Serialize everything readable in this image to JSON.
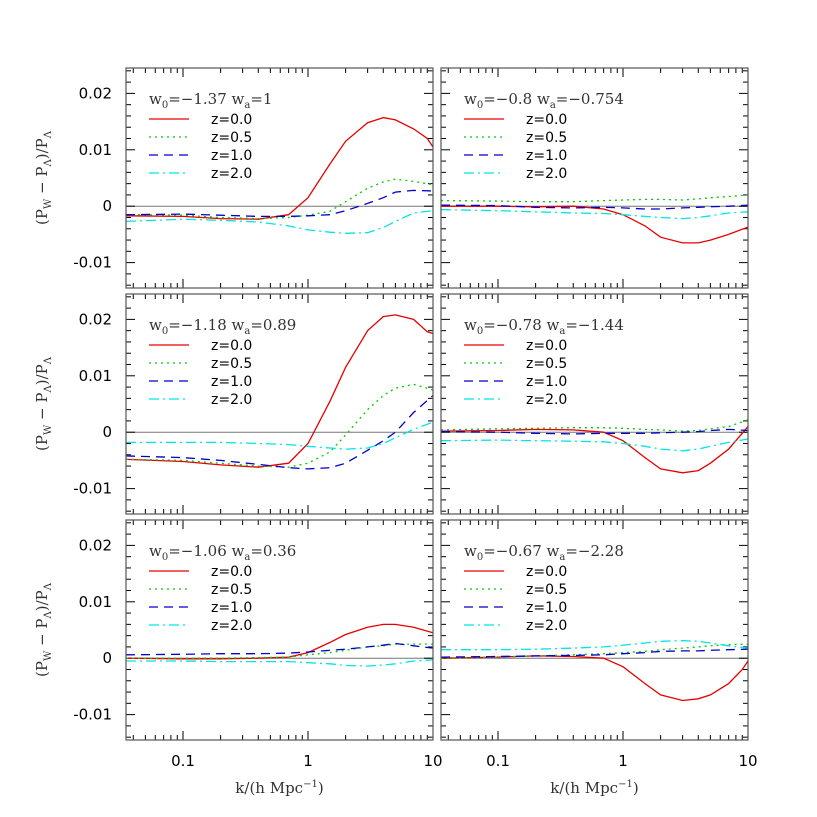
{
  "chart_data": {
    "type": "line",
    "xscale": "log",
    "xlim": [
      0.035,
      10
    ],
    "ylim": [
      -0.0145,
      0.0245
    ],
    "x_ticks": [
      "0.1",
      "1",
      "10"
    ],
    "y_ticks": [
      "0.02",
      "0.01",
      "0",
      "-0.01"
    ],
    "xlabel": "k/(h Mpc⁻¹)",
    "ylabel": "(Pₔ − PΛ)/PΛ",
    "ylabel_parts": {
      "open": "(P",
      "sub1": "W",
      "minus": " − P",
      "sub2": "Λ",
      "close": ")/P",
      "sub3": "Λ"
    },
    "xlabel_parts": {
      "main": "k/(h Mpc",
      "sup": "−1",
      "close": ")"
    },
    "series_styles": [
      {
        "name": "z=0.0",
        "color": "#e60000",
        "dash": ""
      },
      {
        "name": "z=0.5",
        "color": "#00cc00",
        "dash": "2,4"
      },
      {
        "name": "z=1.0",
        "color": "#0000cc",
        "dash": "9,6"
      },
      {
        "name": "z=2.0",
        "color": "#00e5e5",
        "dash": "10,4,2,4"
      }
    ],
    "panels": [
      {
        "w0": "−1.37",
        "wa": "1",
        "series": [
          {
            "name": "z=0.0",
            "x": [
              0.035,
              0.1,
              0.2,
              0.4,
              0.7,
              1.0,
              1.5,
              2.0,
              3.0,
              4.0,
              5.0,
              7.0,
              9.0,
              10.0
            ],
            "values": [
              -0.0017,
              -0.0018,
              -0.0022,
              -0.0023,
              -0.0015,
              0.0015,
              0.0075,
              0.0115,
              0.0148,
              0.0157,
              0.0153,
              0.0137,
              0.012,
              0.0105
            ]
          },
          {
            "name": "z=0.5",
            "x": [
              0.035,
              0.1,
              0.2,
              0.4,
              0.7,
              1.0,
              1.5,
              2.0,
              3.0,
              4.0,
              5.0,
              7.0,
              10.0
            ],
            "values": [
              -0.0015,
              -0.0016,
              -0.002,
              -0.0022,
              -0.002,
              -0.0016,
              -0.0009,
              0.0008,
              0.0032,
              0.0043,
              0.0048,
              0.0044,
              0.0038
            ]
          },
          {
            "name": "z=1.0",
            "x": [
              0.035,
              0.1,
              0.2,
              0.4,
              0.7,
              1.0,
              1.5,
              2.0,
              3.0,
              4.0,
              5.0,
              7.0,
              10.0
            ],
            "values": [
              -0.0015,
              -0.0014,
              -0.0016,
              -0.0018,
              -0.0018,
              -0.0017,
              -0.0015,
              -0.0008,
              0.0005,
              0.0015,
              0.0025,
              0.0028,
              0.0027
            ]
          },
          {
            "name": "z=2.0",
            "x": [
              0.035,
              0.1,
              0.2,
              0.4,
              0.7,
              1.0,
              1.5,
              2.0,
              3.0,
              4.0,
              5.0,
              7.0,
              10.0
            ],
            "values": [
              -0.0027,
              -0.0023,
              -0.0025,
              -0.0028,
              -0.0035,
              -0.0042,
              -0.0046,
              -0.0048,
              -0.0047,
              -0.0038,
              -0.0027,
              -0.0012,
              -0.0008
            ]
          }
        ]
      },
      {
        "w0": "−0.8",
        "wa": "−0.754",
        "series": [
          {
            "name": "z=0.0",
            "x": [
              0.035,
              0.1,
              0.2,
              0.4,
              0.7,
              1.0,
              1.5,
              2.0,
              3.0,
              4.0,
              5.0,
              7.0,
              10.0
            ],
            "values": [
              0.0,
              0.0,
              -0.0001,
              0.0,
              -0.0005,
              -0.0015,
              -0.0035,
              -0.0055,
              -0.0065,
              -0.0065,
              -0.006,
              -0.005,
              -0.0037
            ]
          },
          {
            "name": "z=0.5",
            "x": [
              0.035,
              0.1,
              0.2,
              0.4,
              0.7,
              1.0,
              1.5,
              2.0,
              3.0,
              4.0,
              5.0,
              7.0,
              10.0
            ],
            "values": [
              0.001,
              0.0009,
              0.0008,
              0.0008,
              0.001,
              0.0011,
              0.0012,
              0.0012,
              0.0011,
              0.0013,
              0.0015,
              0.0017,
              0.002
            ]
          },
          {
            "name": "z=1.0",
            "x": [
              0.035,
              0.1,
              0.2,
              0.4,
              0.7,
              1.0,
              1.5,
              2.0,
              3.0,
              4.0,
              5.0,
              7.0,
              10.0
            ],
            "values": [
              0.0002,
              0.0001,
              -0.0002,
              -0.0003,
              -0.0002,
              -0.0003,
              -0.0005,
              -0.0005,
              -0.0003,
              -0.0002,
              -0.0001,
              0.0,
              0.0002
            ]
          },
          {
            "name": "z=2.0",
            "x": [
              0.035,
              0.1,
              0.2,
              0.4,
              0.7,
              1.0,
              1.5,
              2.0,
              3.0,
              4.0,
              5.0,
              7.0,
              10.0
            ],
            "values": [
              -0.0006,
              -0.0008,
              -0.001,
              -0.0012,
              -0.0013,
              -0.0015,
              -0.0018,
              -0.002,
              -0.0022,
              -0.002,
              -0.0017,
              -0.0012,
              -0.001
            ]
          }
        ]
      },
      {
        "w0": "−1.18",
        "wa": "0.89",
        "series": [
          {
            "name": "z=0.0",
            "x": [
              0.035,
              0.1,
              0.2,
              0.4,
              0.7,
              1.0,
              1.5,
              2.0,
              3.0,
              4.0,
              5.0,
              7.0,
              9.0,
              10.0
            ],
            "values": [
              -0.0048,
              -0.0052,
              -0.0058,
              -0.0062,
              -0.0055,
              -0.002,
              0.0055,
              0.0115,
              0.018,
              0.0205,
              0.0208,
              0.02,
              0.0178,
              0.0175
            ]
          },
          {
            "name": "z=0.5",
            "x": [
              0.035,
              0.1,
              0.2,
              0.4,
              0.7,
              1.0,
              1.5,
              2.0,
              3.0,
              4.0,
              5.0,
              7.0,
              10.0
            ],
            "values": [
              -0.0048,
              -0.005,
              -0.0055,
              -0.006,
              -0.0062,
              -0.0055,
              -0.0035,
              -0.0005,
              0.004,
              0.0065,
              0.0078,
              0.0085,
              0.0075
            ]
          },
          {
            "name": "z=1.0",
            "x": [
              0.035,
              0.1,
              0.2,
              0.4,
              0.7,
              1.0,
              1.5,
              2.0,
              3.0,
              4.0,
              5.0,
              7.0,
              10.0
            ],
            "values": [
              -0.0042,
              -0.0045,
              -0.005,
              -0.0057,
              -0.0063,
              -0.0065,
              -0.0063,
              -0.0055,
              -0.0032,
              -0.0015,
              0.0,
              0.0035,
              0.0065
            ]
          },
          {
            "name": "z=2.0",
            "x": [
              0.035,
              0.1,
              0.2,
              0.4,
              0.7,
              1.0,
              1.5,
              2.0,
              3.0,
              4.0,
              5.0,
              7.0,
              10.0
            ],
            "values": [
              -0.0018,
              -0.0018,
              -0.0018,
              -0.002,
              -0.0022,
              -0.0025,
              -0.0028,
              -0.003,
              -0.0028,
              -0.002,
              -0.001,
              0.0005,
              0.0018
            ]
          }
        ]
      },
      {
        "w0": "−0.78",
        "wa": "−1.44",
        "series": [
          {
            "name": "z=0.0",
            "x": [
              0.035,
              0.1,
              0.2,
              0.4,
              0.7,
              1.0,
              1.5,
              2.0,
              3.0,
              4.0,
              5.0,
              7.0,
              10.0
            ],
            "values": [
              0.0002,
              0.0003,
              0.0005,
              0.0004,
              0.0,
              -0.0015,
              -0.0045,
              -0.0065,
              -0.0072,
              -0.0068,
              -0.0055,
              -0.003,
              0.001
            ]
          },
          {
            "name": "z=0.5",
            "x": [
              0.035,
              0.1,
              0.2,
              0.4,
              0.7,
              1.0,
              1.5,
              2.0,
              3.0,
              4.0,
              5.0,
              7.0,
              10.0
            ],
            "values": [
              0.0004,
              0.0006,
              0.0007,
              0.0008,
              0.0008,
              0.0007,
              0.0005,
              0.0004,
              0.0002,
              0.0003,
              0.0006,
              0.001,
              0.0022
            ]
          },
          {
            "name": "z=1.0",
            "x": [
              0.035,
              0.1,
              0.2,
              0.4,
              0.7,
              1.0,
              1.5,
              2.0,
              3.0,
              4.0,
              5.0,
              7.0,
              10.0
            ],
            "values": [
              0.0001,
              0.0,
              -0.0002,
              -0.0003,
              -0.0002,
              -0.0002,
              -0.0002,
              -0.0001,
              0.0,
              0.0001,
              0.0003,
              0.0005,
              0.0003
            ]
          },
          {
            "name": "z=2.0",
            "x": [
              0.035,
              0.1,
              0.2,
              0.4,
              0.7,
              1.0,
              1.5,
              2.0,
              3.0,
              4.0,
              5.0,
              7.0,
              10.0
            ],
            "values": [
              -0.0015,
              -0.0014,
              -0.0015,
              -0.0016,
              -0.0017,
              -0.002,
              -0.0025,
              -0.003,
              -0.0033,
              -0.003,
              -0.0025,
              -0.0018,
              -0.0012
            ]
          }
        ]
      },
      {
        "w0": "−1.06",
        "wa": "0.36",
        "series": [
          {
            "name": "z=0.0",
            "x": [
              0.035,
              0.1,
              0.2,
              0.4,
              0.7,
              1.0,
              1.5,
              2.0,
              3.0,
              4.0,
              5.0,
              7.0,
              10.0
            ],
            "values": [
              0.0,
              -0.0001,
              -0.0001,
              0.0,
              0.0002,
              0.001,
              0.0028,
              0.0042,
              0.0055,
              0.006,
              0.006,
              0.0055,
              0.0045
            ]
          },
          {
            "name": "z=0.5",
            "x": [
              0.035,
              0.1,
              0.2,
              0.4,
              0.7,
              1.0,
              1.5,
              2.0,
              3.0,
              4.0,
              5.0,
              7.0,
              10.0
            ],
            "values": [
              0.0,
              0.0,
              0.0,
              0.0001,
              0.0002,
              0.0006,
              0.001,
              0.0014,
              0.002,
              0.0022,
              0.0025,
              0.0025,
              0.0025
            ]
          },
          {
            "name": "z=1.0",
            "x": [
              0.035,
              0.1,
              0.2,
              0.4,
              0.7,
              1.0,
              1.5,
              2.0,
              3.0,
              4.0,
              5.0,
              7.0,
              10.0
            ],
            "values": [
              0.0006,
              0.0007,
              0.0008,
              0.0008,
              0.0009,
              0.0011,
              0.0014,
              0.0016,
              0.002,
              0.0023,
              0.0026,
              0.0022,
              0.0018
            ]
          },
          {
            "name": "z=2.0",
            "x": [
              0.035,
              0.1,
              0.2,
              0.4,
              0.7,
              1.0,
              1.5,
              2.0,
              3.0,
              4.0,
              5.0,
              7.0,
              10.0
            ],
            "values": [
              -0.0005,
              -0.0005,
              -0.0006,
              -0.0006,
              -0.0006,
              -0.0008,
              -0.001,
              -0.0013,
              -0.0014,
              -0.0012,
              -0.001,
              -0.0005,
              -0.0003
            ]
          }
        ]
      },
      {
        "w0": "−0.67",
        "wa": "−2.28",
        "series": [
          {
            "name": "z=0.0",
            "x": [
              0.035,
              0.1,
              0.2,
              0.4,
              0.7,
              1.0,
              1.5,
              2.0,
              3.0,
              4.0,
              5.0,
              7.0,
              9.0,
              10.0
            ],
            "values": [
              0.0,
              0.0002,
              0.0004,
              0.0003,
              0.0,
              -0.0015,
              -0.0045,
              -0.0065,
              -0.0075,
              -0.0072,
              -0.0065,
              -0.0045,
              -0.002,
              -0.0005
            ]
          },
          {
            "name": "z=0.5",
            "x": [
              0.035,
              0.1,
              0.2,
              0.4,
              0.7,
              1.0,
              1.5,
              2.0,
              3.0,
              4.0,
              5.0,
              7.0,
              10.0
            ],
            "values": [
              0.0,
              0.0002,
              0.0004,
              0.0006,
              0.0008,
              0.001,
              0.0012,
              0.0015,
              0.0018,
              0.002,
              0.0022,
              0.0024,
              0.0025
            ]
          },
          {
            "name": "z=1.0",
            "x": [
              0.035,
              0.1,
              0.2,
              0.4,
              0.7,
              1.0,
              1.5,
              2.0,
              3.0,
              4.0,
              5.0,
              7.0,
              10.0
            ],
            "values": [
              0.0002,
              0.0003,
              0.0004,
              0.0005,
              0.0006,
              0.0008,
              0.001,
              0.0012,
              0.0013,
              0.0013,
              0.0014,
              0.0015,
              0.0016
            ]
          },
          {
            "name": "z=2.0",
            "x": [
              0.035,
              0.1,
              0.2,
              0.4,
              0.7,
              1.0,
              1.5,
              2.0,
              3.0,
              4.0,
              5.0,
              7.0,
              10.0
            ],
            "values": [
              0.0015,
              0.0015,
              0.0016,
              0.0018,
              0.002,
              0.0023,
              0.0027,
              0.003,
              0.0031,
              0.003,
              0.0027,
              0.0022,
              0.0018
            ]
          }
        ]
      }
    ]
  }
}
